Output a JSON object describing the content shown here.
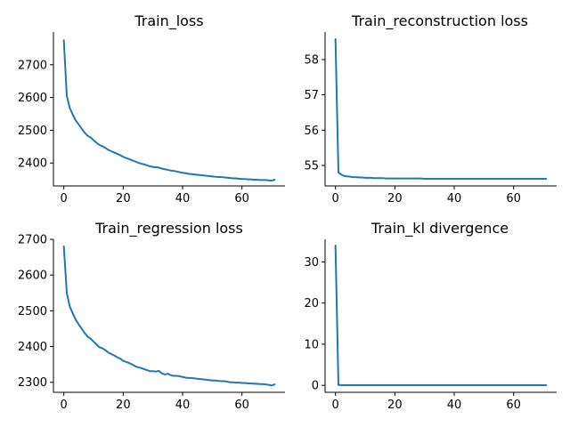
{
  "chart_data": [
    {
      "type": "line",
      "title": "Train_loss",
      "xlabel": "",
      "ylabel": "",
      "xlim": [
        -3.5,
        74.5
      ],
      "ylim": [
        2330,
        2800
      ],
      "xticks": [
        0,
        20,
        40,
        60
      ],
      "yticks": [
        2400,
        2500,
        2600,
        2700
      ],
      "grid": false,
      "color": "#1f77b4",
      "series": [
        {
          "x": [
            0,
            1,
            2,
            3,
            4,
            5,
            6,
            7,
            8,
            9,
            10,
            11,
            12,
            13,
            14,
            15,
            16,
            17,
            18,
            19,
            20,
            21,
            22,
            23,
            24,
            25,
            26,
            27,
            28,
            29,
            30,
            31,
            32,
            33,
            34,
            35,
            36,
            37,
            38,
            39,
            40,
            41,
            42,
            43,
            44,
            45,
            46,
            47,
            48,
            49,
            50,
            51,
            52,
            53,
            54,
            55,
            56,
            57,
            58,
            59,
            60,
            61,
            62,
            63,
            64,
            65,
            66,
            67,
            68,
            69,
            70,
            71
          ],
          "y": [
            2775,
            2605,
            2568,
            2548,
            2530,
            2518,
            2505,
            2493,
            2483,
            2478,
            2470,
            2462,
            2455,
            2451,
            2446,
            2440,
            2436,
            2432,
            2428,
            2424,
            2419,
            2415,
            2412,
            2408,
            2405,
            2401,
            2398,
            2396,
            2393,
            2390,
            2388,
            2387,
            2386,
            2383,
            2381,
            2379,
            2377,
            2376,
            2374,
            2372,
            2370,
            2369,
            2367,
            2366,
            2365,
            2364,
            2363,
            2362,
            2361,
            2360,
            2359,
            2358,
            2357,
            2357,
            2356,
            2355,
            2354,
            2353,
            2353,
            2352,
            2351,
            2351,
            2350,
            2350,
            2349,
            2349,
            2348,
            2348,
            2348,
            2347,
            2346,
            2349
          ]
        }
      ]
    },
    {
      "type": "line",
      "title": "Train_reconstruction loss",
      "xlabel": "",
      "ylabel": "",
      "xlim": [
        -3.5,
        74.5
      ],
      "ylim": [
        54.42,
        58.78
      ],
      "xticks": [
        0,
        20,
        40,
        60
      ],
      "yticks": [
        55,
        56,
        57,
        58
      ],
      "grid": false,
      "color": "#1f77b4",
      "series": [
        {
          "x": [
            0,
            1,
            2,
            3,
            4,
            5,
            6,
            7,
            8,
            9,
            10,
            11,
            12,
            13,
            14,
            15,
            16,
            17,
            18,
            19,
            20,
            21,
            22,
            23,
            24,
            25,
            26,
            27,
            28,
            29,
            30,
            31,
            32,
            33,
            34,
            35,
            36,
            37,
            38,
            39,
            40,
            41,
            42,
            43,
            44,
            45,
            46,
            47,
            48,
            49,
            50,
            51,
            52,
            53,
            54,
            55,
            56,
            57,
            58,
            59,
            60,
            61,
            62,
            63,
            64,
            65,
            66,
            67,
            68,
            69,
            70,
            71
          ],
          "y": [
            58.58,
            54.8,
            54.74,
            54.7,
            54.69,
            54.68,
            54.67,
            54.67,
            54.66,
            54.66,
            54.65,
            54.65,
            54.65,
            54.64,
            54.64,
            54.64,
            54.64,
            54.63,
            54.63,
            54.63,
            54.63,
            54.63,
            54.63,
            54.63,
            54.63,
            54.63,
            54.63,
            54.63,
            54.63,
            54.63,
            54.62,
            54.62,
            54.62,
            54.62,
            54.62,
            54.62,
            54.62,
            54.62,
            54.62,
            54.62,
            54.62,
            54.62,
            54.62,
            54.62,
            54.62,
            54.62,
            54.62,
            54.62,
            54.62,
            54.62,
            54.62,
            54.62,
            54.62,
            54.62,
            54.62,
            54.62,
            54.62,
            54.62,
            54.62,
            54.62,
            54.62,
            54.62,
            54.62,
            54.62,
            54.62,
            54.62,
            54.62,
            54.62,
            54.62,
            54.62,
            54.62,
            54.62
          ]
        }
      ]
    },
    {
      "type": "line",
      "title": "Train_regression loss",
      "xlabel": "",
      "ylabel": "",
      "xlim": [
        -3.5,
        74.5
      ],
      "ylim": [
        2272,
        2700
      ],
      "xticks": [
        0,
        20,
        40,
        60
      ],
      "yticks": [
        2300,
        2400,
        2500,
        2600,
        2700
      ],
      "grid": false,
      "color": "#1f77b4",
      "series": [
        {
          "x": [
            0,
            1,
            2,
            3,
            4,
            5,
            6,
            7,
            8,
            9,
            10,
            11,
            12,
            13,
            14,
            15,
            16,
            17,
            18,
            19,
            20,
            21,
            22,
            23,
            24,
            25,
            26,
            27,
            28,
            29,
            30,
            31,
            32,
            33,
            34,
            35,
            36,
            37,
            38,
            39,
            40,
            41,
            42,
            43,
            44,
            45,
            46,
            47,
            48,
            49,
            50,
            51,
            52,
            53,
            54,
            55,
            56,
            57,
            58,
            59,
            60,
            61,
            62,
            63,
            64,
            65,
            66,
            67,
            68,
            69,
            70,
            71
          ],
          "y": [
            2680,
            2550,
            2512,
            2493,
            2475,
            2462,
            2450,
            2438,
            2428,
            2422,
            2414,
            2406,
            2398,
            2395,
            2390,
            2383,
            2379,
            2375,
            2370,
            2366,
            2360,
            2357,
            2354,
            2350,
            2345,
            2342,
            2340,
            2337,
            2334,
            2331,
            2331,
            2330,
            2332,
            2325,
            2322,
            2324,
            2320,
            2318,
            2318,
            2317,
            2315,
            2313,
            2312,
            2312,
            2311,
            2310,
            2309,
            2308,
            2307,
            2306,
            2305,
            2305,
            2304,
            2303,
            2303,
            2302,
            2300,
            2300,
            2299,
            2299,
            2298,
            2298,
            2297,
            2297,
            2296,
            2296,
            2295,
            2295,
            2294,
            2293,
            2291,
            2294
          ]
        }
      ]
    },
    {
      "type": "line",
      "title": "Train_kl divergence",
      "xlabel": "",
      "ylabel": "",
      "xlim": [
        -3.5,
        74.5
      ],
      "ylim": [
        -1.7,
        35.5
      ],
      "xticks": [
        0,
        20,
        40,
        60
      ],
      "yticks": [
        0,
        10,
        20,
        30
      ],
      "grid": false,
      "color": "#1f77b4",
      "series": [
        {
          "x": [
            0,
            1,
            2,
            3,
            4,
            5,
            6,
            7,
            8,
            9,
            10,
            11,
            12,
            13,
            14,
            15,
            16,
            17,
            18,
            19,
            20,
            21,
            22,
            23,
            24,
            25,
            26,
            27,
            28,
            29,
            30,
            31,
            32,
            33,
            34,
            35,
            36,
            37,
            38,
            39,
            40,
            41,
            42,
            43,
            44,
            45,
            46,
            47,
            48,
            49,
            50,
            51,
            52,
            53,
            54,
            55,
            56,
            57,
            58,
            59,
            60,
            61,
            62,
            63,
            64,
            65,
            66,
            67,
            68,
            69,
            70,
            71
          ],
          "y": [
            34,
            0.1,
            0.05,
            0.04,
            0.03,
            0.03,
            0.02,
            0.02,
            0.02,
            0.02,
            0.02,
            0.02,
            0.02,
            0.02,
            0.02,
            0.02,
            0.02,
            0.02,
            0.02,
            0.02,
            0.02,
            0.02,
            0.02,
            0.02,
            0.02,
            0.02,
            0.02,
            0.02,
            0.02,
            0.02,
            0.02,
            0.02,
            0.02,
            0.02,
            0.02,
            0.02,
            0.02,
            0.02,
            0.02,
            0.02,
            0.02,
            0.02,
            0.02,
            0.02,
            0.02,
            0.02,
            0.02,
            0.02,
            0.02,
            0.02,
            0.02,
            0.02,
            0.02,
            0.02,
            0.02,
            0.02,
            0.02,
            0.02,
            0.02,
            0.02,
            0.02,
            0.02,
            0.02,
            0.02,
            0.02,
            0.02,
            0.02,
            0.02,
            0.02,
            0.02,
            0.02,
            0.02
          ]
        }
      ]
    }
  ]
}
